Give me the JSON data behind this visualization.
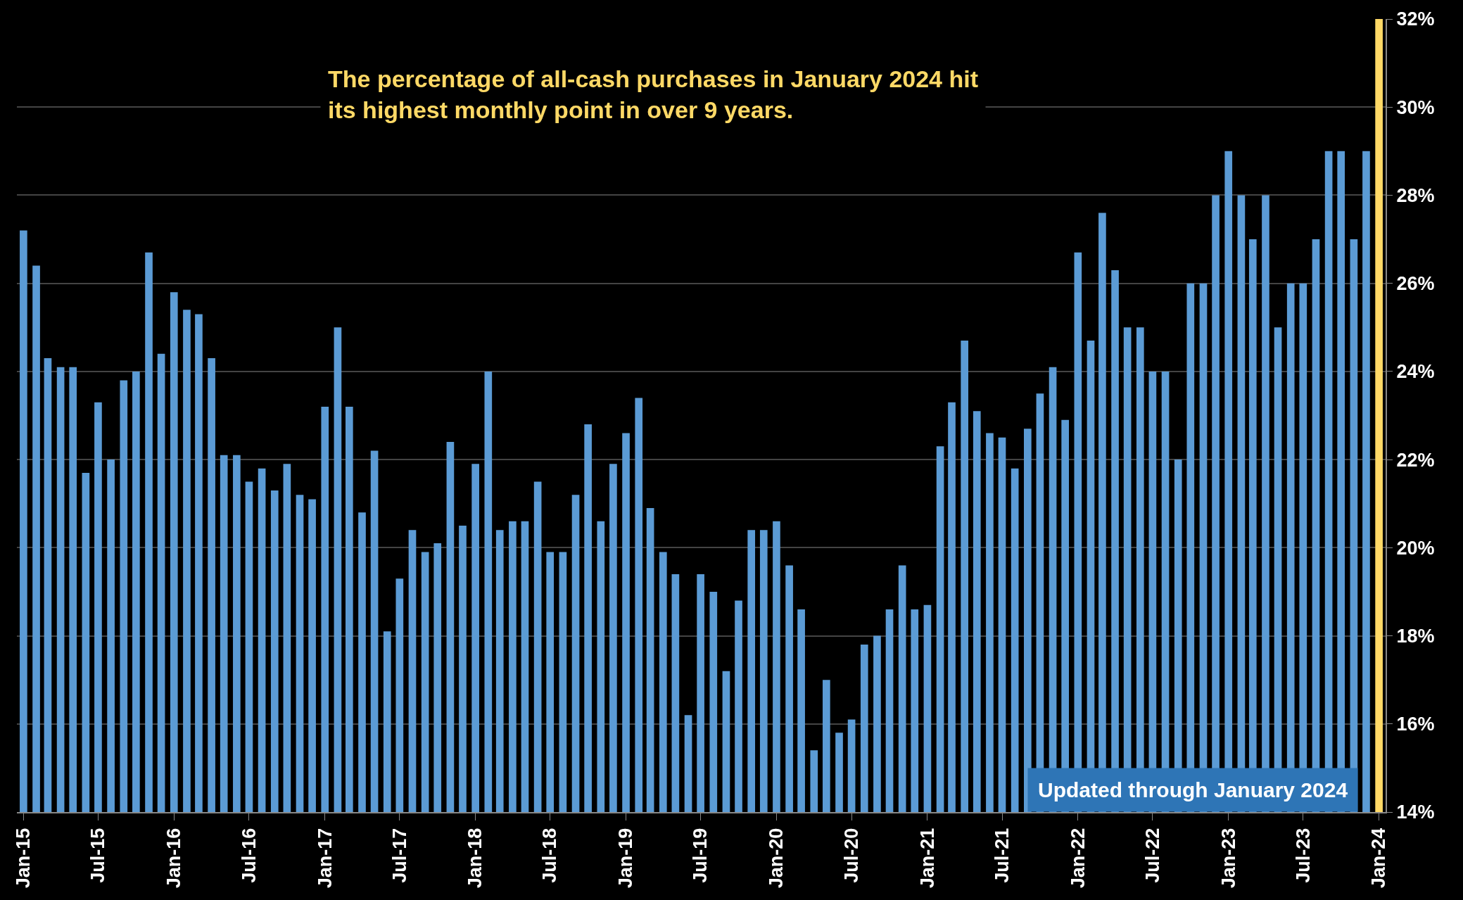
{
  "chart_data": {
    "type": "bar",
    "x": [
      "2015-01",
      "2015-02",
      "2015-03",
      "2015-04",
      "2015-05",
      "2015-06",
      "2015-07",
      "2015-08",
      "2015-09",
      "2015-10",
      "2015-11",
      "2015-12",
      "2016-01",
      "2016-02",
      "2016-03",
      "2016-04",
      "2016-05",
      "2016-06",
      "2016-07",
      "2016-08",
      "2016-09",
      "2016-10",
      "2016-11",
      "2016-12",
      "2017-01",
      "2017-02",
      "2017-03",
      "2017-04",
      "2017-05",
      "2017-06",
      "2017-07",
      "2017-08",
      "2017-09",
      "2017-10",
      "2017-11",
      "2017-12",
      "2018-01",
      "2018-02",
      "2018-03",
      "2018-04",
      "2018-05",
      "2018-06",
      "2018-07",
      "2018-08",
      "2018-09",
      "2018-10",
      "2018-11",
      "2018-12",
      "2019-01",
      "2019-02",
      "2019-03",
      "2019-04",
      "2019-05",
      "2019-06",
      "2019-07",
      "2019-08",
      "2019-09",
      "2019-10",
      "2019-11",
      "2019-12",
      "2020-01",
      "2020-02",
      "2020-03",
      "2020-04",
      "2020-05",
      "2020-06",
      "2020-07",
      "2020-08",
      "2020-09",
      "2020-10",
      "2020-11",
      "2020-12",
      "2021-01",
      "2021-02",
      "2021-03",
      "2021-04",
      "2021-05",
      "2021-06",
      "2021-07",
      "2021-08",
      "2021-09",
      "2021-10",
      "2021-11",
      "2021-12",
      "2022-01",
      "2022-02",
      "2022-03",
      "2022-04",
      "2022-05",
      "2022-06",
      "2022-07",
      "2022-08",
      "2022-09",
      "2022-10",
      "2022-11",
      "2022-12",
      "2023-01",
      "2023-02",
      "2023-03",
      "2023-04",
      "2023-05",
      "2023-06",
      "2023-07",
      "2023-08",
      "2023-09",
      "2023-10",
      "2023-11",
      "2023-12",
      "2024-01"
    ],
    "values": [
      27.2,
      26.4,
      24.3,
      24.1,
      24.1,
      21.7,
      23.3,
      22.0,
      23.8,
      24.0,
      26.7,
      24.4,
      25.8,
      25.4,
      25.3,
      24.3,
      22.1,
      22.1,
      21.5,
      21.8,
      21.3,
      21.9,
      21.2,
      21.1,
      23.2,
      25.0,
      23.2,
      20.8,
      22.2,
      18.1,
      19.3,
      20.4,
      19.9,
      20.1,
      22.4,
      20.5,
      21.9,
      24.0,
      20.4,
      20.6,
      20.6,
      21.5,
      19.9,
      19.9,
      21.2,
      22.8,
      20.6,
      21.9,
      22.6,
      23.4,
      20.9,
      19.9,
      19.4,
      16.2,
      19.4,
      19.0,
      17.2,
      18.8,
      20.4,
      20.4,
      20.6,
      19.6,
      18.6,
      15.4,
      17.0,
      15.8,
      16.1,
      17.8,
      18.0,
      18.6,
      19.6,
      18.6,
      18.7,
      22.3,
      23.3,
      24.7,
      23.1,
      22.6,
      22.5,
      21.8,
      22.7,
      23.5,
      24.1,
      22.9,
      26.7,
      24.7,
      27.6,
      26.3,
      25.0,
      25.0,
      24.0,
      24.0,
      22.0,
      26.0,
      26.0,
      28.0,
      29,
      28,
      27,
      28,
      25,
      26,
      26,
      27,
      29,
      29,
      27,
      29,
      32
    ],
    "colors": [
      "#5b9bd5",
      "#5b9bd5",
      "#5b9bd5",
      "#5b9bd5",
      "#5b9bd5",
      "#5b9bd5",
      "#5b9bd5",
      "#5b9bd5",
      "#5b9bd5",
      "#5b9bd5",
      "#5b9bd5",
      "#5b9bd5",
      "#5b9bd5",
      "#5b9bd5",
      "#5b9bd5",
      "#5b9bd5",
      "#5b9bd5",
      "#5b9bd5",
      "#5b9bd5",
      "#5b9bd5",
      "#5b9bd5",
      "#5b9bd5",
      "#5b9bd5",
      "#5b9bd5",
      "#5b9bd5",
      "#5b9bd5",
      "#5b9bd5",
      "#5b9bd5",
      "#5b9bd5",
      "#5b9bd5",
      "#5b9bd5",
      "#5b9bd5",
      "#5b9bd5",
      "#5b9bd5",
      "#5b9bd5",
      "#5b9bd5",
      "#5b9bd5",
      "#5b9bd5",
      "#5b9bd5",
      "#5b9bd5",
      "#5b9bd5",
      "#5b9bd5",
      "#5b9bd5",
      "#5b9bd5",
      "#5b9bd5",
      "#5b9bd5",
      "#5b9bd5",
      "#5b9bd5",
      "#5b9bd5",
      "#5b9bd5",
      "#5b9bd5",
      "#5b9bd5",
      "#5b9bd5",
      "#5b9bd5",
      "#5b9bd5",
      "#5b9bd5",
      "#5b9bd5",
      "#5b9bd5",
      "#5b9bd5",
      "#5b9bd5",
      "#5b9bd5",
      "#5b9bd5",
      "#5b9bd5",
      "#5b9bd5",
      "#5b9bd5",
      "#5b9bd5",
      "#5b9bd5",
      "#5b9bd5",
      "#5b9bd5",
      "#5b9bd5",
      "#5b9bd5",
      "#5b9bd5",
      "#5b9bd5",
      "#5b9bd5",
      "#5b9bd5",
      "#5b9bd5",
      "#5b9bd5",
      "#5b9bd5",
      "#5b9bd5",
      "#5b9bd5",
      "#5b9bd5",
      "#5b9bd5",
      "#5b9bd5",
      "#5b9bd5",
      "#5b9bd5",
      "#5b9bd5",
      "#5b9bd5",
      "#5b9bd5",
      "#5b9bd5",
      "#5b9bd5",
      "#5b9bd5",
      "#5b9bd5",
      "#5b9bd5",
      "#5b9bd5",
      "#5b9bd5",
      "#5b9bd5",
      "#5b9bd5",
      "#5b9bd5",
      "#5b9bd5",
      "#5b9bd5",
      "#5b9bd5",
      "#5b9bd5",
      "#5b9bd5",
      "#5b9bd5",
      "#5b9bd5",
      "#5b9bd5",
      "#5b9bd5",
      "#5b9bd5",
      "#ffd966"
    ],
    "xlim": [
      "2014-12-16",
      "2024-01-17"
    ],
    "xticks": [
      {
        "value": "2015-01",
        "label": "Jan-15"
      },
      {
        "value": "2015-07",
        "label": "Jul-15"
      },
      {
        "value": "2016-01",
        "label": "Jan-16"
      },
      {
        "value": "2016-07",
        "label": "Jul-16"
      },
      {
        "value": "2017-01",
        "label": "Jan-17"
      },
      {
        "value": "2017-07",
        "label": "Jul-17"
      },
      {
        "value": "2018-01",
        "label": "Jan-18"
      },
      {
        "value": "2018-07",
        "label": "Jul-18"
      },
      {
        "value": "2019-01",
        "label": "Jan-19"
      },
      {
        "value": "2019-07",
        "label": "Jul-19"
      },
      {
        "value": "2020-01",
        "label": "Jan-20"
      },
      {
        "value": "2020-07",
        "label": "Jul-20"
      },
      {
        "value": "2021-01",
        "label": "Jan-21"
      },
      {
        "value": "2021-07",
        "label": "Jul-21"
      },
      {
        "value": "2022-01",
        "label": "Jan-22"
      },
      {
        "value": "2022-07",
        "label": "Jul-22"
      },
      {
        "value": "2023-01",
        "label": "Jan-23"
      },
      {
        "value": "2023-07",
        "label": "Jul-23"
      },
      {
        "value": "2024-01",
        "label": "Jan-24"
      }
    ],
    "ylim": [
      14,
      32
    ],
    "yticks": [
      {
        "value": 14,
        "label": "14%"
      },
      {
        "value": 16,
        "label": "16%"
      },
      {
        "value": 18,
        "label": "18%"
      },
      {
        "value": 20,
        "label": "20%"
      },
      {
        "value": 22,
        "label": "22%"
      },
      {
        "value": 24,
        "label": "24%"
      },
      {
        "value": 26,
        "label": "26%"
      },
      {
        "value": 28,
        "label": "28%"
      },
      {
        "value": 30,
        "label": "30%"
      },
      {
        "value": 32,
        "label": "32%"
      }
    ],
    "grid": "y",
    "annotations": [
      "The percentage of all-cash purchases in January 2024 hit its highest monthly point in over 9 years.",
      "Updated through January 2024"
    ]
  }
}
